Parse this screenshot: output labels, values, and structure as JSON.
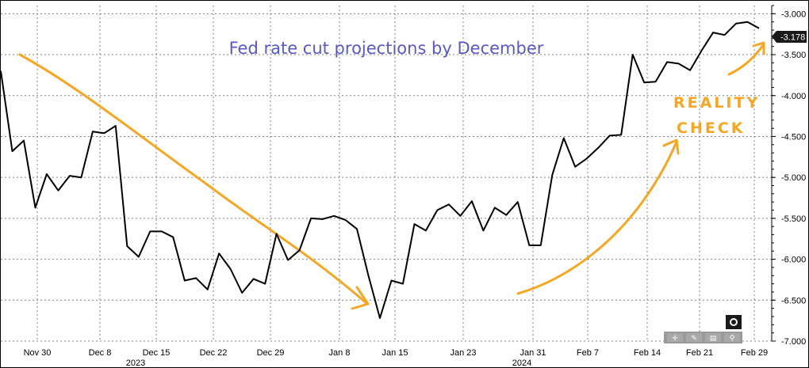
{
  "chart_data": {
    "type": "line",
    "title": "Fed rate cut projections by December",
    "y_axis": {
      "position": "right",
      "ylim": [
        -7.0,
        -2.9
      ],
      "ticks": [
        -3.0,
        -3.5,
        -4.0,
        -4.5,
        -5.0,
        -5.5,
        -6.0,
        -6.5,
        -7.0
      ],
      "tick_labels": [
        "-3.000",
        "-3.500",
        "-4.000",
        "-4.500",
        "-5.000",
        "-5.500",
        "-6.000",
        "-6.500",
        "-7.000"
      ]
    },
    "x_axis": {
      "tick_labels": [
        "Nov 30",
        "Dec 8",
        "Dec 15",
        "Dec 22",
        "Dec 29",
        "Jan 8",
        "Jan 15",
        "Jan 23",
        "Jan 31",
        "Feb 7",
        "Feb 14",
        "Feb 21",
        "Feb 29"
      ],
      "year_labels": [
        "2023",
        "2024"
      ]
    },
    "grid": true,
    "last_value_label": "-3.178",
    "series": [
      {
        "values": [
          -3.7,
          -4.68,
          -4.55,
          -5.37,
          -4.96,
          -5.16,
          -4.98,
          -5.0,
          -4.44,
          -4.46,
          -4.37,
          -5.84,
          -5.97,
          -5.66,
          -5.66,
          -5.73,
          -6.26,
          -6.23,
          -6.37,
          -5.93,
          -6.12,
          -6.41,
          -6.24,
          -6.3,
          -5.69,
          -6.01,
          -5.89,
          -5.5,
          -5.51,
          -5.47,
          -5.52,
          -5.63,
          -6.2,
          -6.72,
          -6.26,
          -6.3,
          -5.57,
          -5.65,
          -5.4,
          -5.33,
          -5.47,
          -5.29,
          -5.65,
          -5.37,
          -5.46,
          -5.3,
          -5.83,
          -5.83,
          -4.97,
          -4.52,
          -4.87,
          -4.77,
          -4.64,
          -4.49,
          -4.48,
          -3.5,
          -3.84,
          -3.83,
          -3.59,
          -3.61,
          -3.69,
          -3.45,
          -3.23,
          -3.26,
          -3.12,
          -3.1,
          -3.178
        ]
      }
    ],
    "annotations": [
      {
        "text": "REALITY"
      },
      {
        "text": "CHECK"
      }
    ]
  },
  "toolbar": {
    "icons": [
      "move-icon",
      "pen-icon",
      "trash-icon",
      "zoom-icon"
    ]
  },
  "colors": {
    "title": "#5858c8",
    "series": "#000000",
    "annotation": "#f5a623",
    "last_badge": "#1a1a1a",
    "toolbar": "#a8a8a8"
  }
}
